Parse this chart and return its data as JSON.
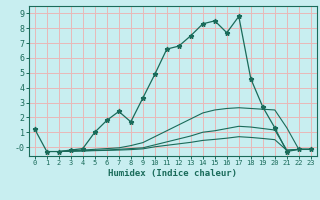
{
  "xlabel": "Humidex (Indice chaleur)",
  "bg_color": "#c8eef0",
  "grid_color": "#e8b8b8",
  "line_color": "#1a6b5a",
  "xlim": [
    -0.5,
    23.5
  ],
  "ylim": [
    -0.6,
    9.5
  ],
  "xticks": [
    0,
    1,
    2,
    3,
    4,
    5,
    6,
    7,
    8,
    9,
    10,
    11,
    12,
    13,
    14,
    15,
    16,
    17,
    18,
    19,
    20,
    21,
    22,
    23
  ],
  "yticks": [
    0,
    1,
    2,
    3,
    4,
    5,
    6,
    7,
    8,
    9
  ],
  "ytick_labels": [
    "-0",
    "1",
    "2",
    "3",
    "4",
    "5",
    "6",
    "7",
    "8",
    "9"
  ],
  "lines": [
    {
      "x": [
        0,
        1,
        2,
        3,
        4,
        5,
        6,
        7,
        8,
        9,
        10,
        11,
        12,
        13,
        14,
        15,
        16,
        17,
        18,
        19,
        20,
        21,
        22,
        23
      ],
      "y": [
        1.2,
        -0.3,
        -0.3,
        -0.2,
        -0.1,
        1.0,
        1.8,
        2.4,
        1.7,
        3.3,
        4.9,
        6.6,
        6.8,
        7.5,
        8.3,
        8.5,
        7.7,
        8.8,
        4.6,
        2.7,
        1.3,
        -0.3,
        -0.15,
        -0.15
      ],
      "marker": true
    },
    {
      "x": [
        2,
        3,
        4,
        5,
        6,
        7,
        8,
        9,
        10,
        11,
        12,
        13,
        14,
        15,
        16,
        17,
        18,
        19,
        20,
        21,
        22,
        23
      ],
      "y": [
        -0.3,
        -0.25,
        -0.2,
        -0.15,
        -0.1,
        -0.05,
        0.1,
        0.3,
        0.7,
        1.1,
        1.5,
        1.9,
        2.3,
        2.5,
        2.6,
        2.65,
        2.6,
        2.55,
        2.5,
        1.3,
        -0.15,
        -0.15
      ],
      "marker": false
    },
    {
      "x": [
        2,
        3,
        4,
        5,
        6,
        7,
        8,
        9,
        10,
        11,
        12,
        13,
        14,
        15,
        16,
        17,
        18,
        19,
        20,
        21,
        22,
        23
      ],
      "y": [
        -0.3,
        -0.28,
        -0.25,
        -0.22,
        -0.2,
        -0.15,
        -0.1,
        -0.05,
        0.15,
        0.35,
        0.55,
        0.75,
        1.0,
        1.1,
        1.25,
        1.4,
        1.35,
        1.25,
        1.15,
        -0.2,
        -0.15,
        -0.15
      ],
      "marker": false
    },
    {
      "x": [
        2,
        3,
        4,
        5,
        6,
        7,
        8,
        9,
        10,
        11,
        12,
        13,
        14,
        15,
        16,
        17,
        18,
        19,
        20,
        21,
        22,
        23
      ],
      "y": [
        -0.3,
        -0.28,
        -0.26,
        -0.24,
        -0.22,
        -0.2,
        -0.17,
        -0.12,
        0.02,
        0.12,
        0.22,
        0.32,
        0.45,
        0.52,
        0.6,
        0.7,
        0.65,
        0.58,
        0.5,
        -0.22,
        -0.16,
        -0.16
      ],
      "marker": false
    }
  ]
}
